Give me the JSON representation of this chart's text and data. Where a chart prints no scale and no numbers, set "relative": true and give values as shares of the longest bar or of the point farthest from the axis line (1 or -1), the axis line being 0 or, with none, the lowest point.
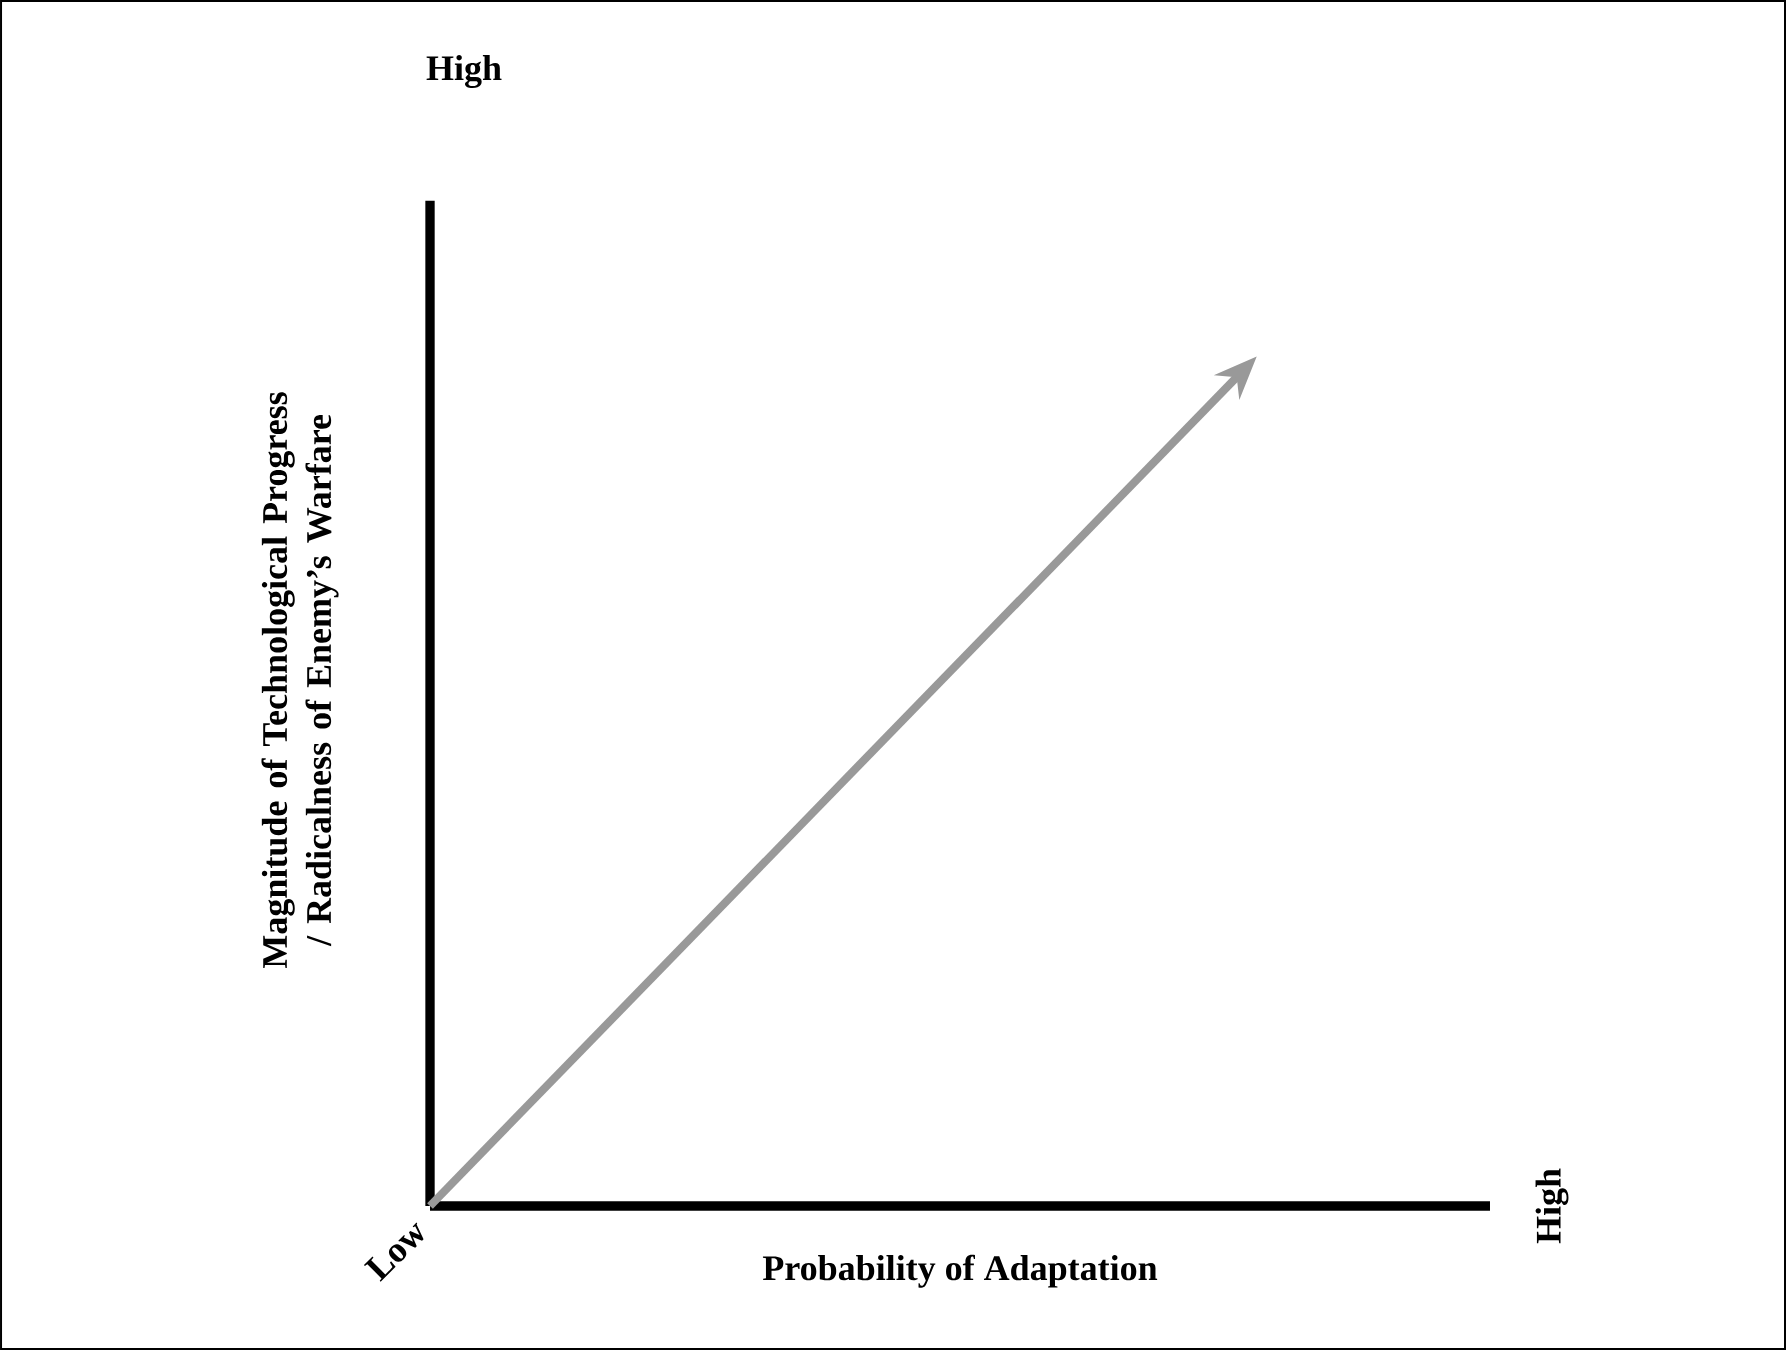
{
  "chart_data": {
    "type": "line",
    "relative": true,
    "xlabel": "Probability of Adaptation",
    "ylabel": "Magnitude of Technological Progress / Radicalness of Enemy’s Warfare",
    "annotations": [
      "High",
      "Low",
      "High"
    ],
    "categories": [
      null,
      null
    ],
    "series": [
      {
        "color": "#999999",
        "values": [
          0,
          1
        ]
      }
    ],
    "line_style": "solid"
  }
}
